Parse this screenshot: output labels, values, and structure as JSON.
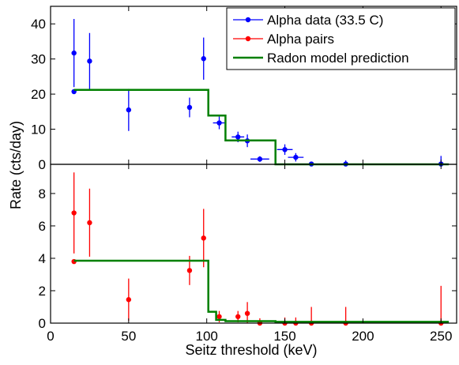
{
  "chart_data": {
    "type": "scatter",
    "xlabel": "Seitz threshold (keV)",
    "ylabel": "Rate (cts/day)",
    "xlim": [
      0,
      260
    ],
    "x_ticks": [
      0,
      50,
      100,
      150,
      200,
      250
    ],
    "grid": false,
    "legend_position": "top-right",
    "panels": [
      {
        "id": "top",
        "ylim": [
          0,
          45
        ],
        "y_ticks": [
          0,
          10,
          20,
          30,
          40
        ],
        "series": [
          {
            "name": "Alpha data (33.5 C)",
            "kind": "errorbar",
            "color": "#0000ff",
            "points": [
              {
                "x": 15,
                "y": 31.7,
                "err": 9.7
              },
              {
                "x": 15,
                "y": 20.7,
                "err": 0.5
              },
              {
                "x": 25,
                "y": 29.4,
                "err": 8.0
              },
              {
                "x": 50,
                "y": 15.5,
                "err": 6.0
              },
              {
                "x": 89,
                "y": 16.2,
                "err": 2.8
              },
              {
                "x": 98,
                "y": 30.1,
                "err": 6.0
              },
              {
                "x": 108,
                "y": 11.8,
                "err": 1.8,
                "xerr": 4
              },
              {
                "x": 120,
                "y": 7.8,
                "err": 1.5,
                "xerr": 4
              },
              {
                "x": 126,
                "y": 6.7,
                "err": 1.8,
                "xerr": 5
              },
              {
                "x": 134,
                "y": 1.5,
                "err": 0.8,
                "xerr": 6
              },
              {
                "x": 150,
                "y": 4.2,
                "err": 1.5,
                "xerr": 5
              },
              {
                "x": 157,
                "y": 2.0,
                "err": 1.2,
                "xerr": 5
              },
              {
                "x": 167,
                "y": 0.1,
                "err": 0.4
              },
              {
                "x": 189,
                "y": 0.1,
                "err": 1.0
              },
              {
                "x": 250,
                "y": 0.1,
                "err": 2.3
              }
            ]
          },
          {
            "name": "Radon model prediction",
            "kind": "step",
            "color": "#008000",
            "x": [
              15,
              101,
              101,
              112,
              112,
              144,
              144,
              255
            ],
            "y": [
              21.2,
              21.2,
              13.9,
              13.9,
              6.8,
              6.8,
              0,
              0
            ]
          }
        ]
      },
      {
        "id": "bottom",
        "ylim": [
          0,
          9.8
        ],
        "y_ticks": [
          0,
          2,
          4,
          6,
          8
        ],
        "series": [
          {
            "name": "Alpha pairs",
            "kind": "errorbar",
            "color": "#ff0000",
            "points": [
              {
                "x": 15,
                "y": 6.8,
                "err": 2.5
              },
              {
                "x": 15,
                "y": 3.8,
                "err": 0.1
              },
              {
                "x": 25,
                "y": 6.2,
                "err": 2.1
              },
              {
                "x": 50,
                "y": 1.45,
                "err": 1.3
              },
              {
                "x": 89,
                "y": 3.25,
                "err": 0.9
              },
              {
                "x": 98,
                "y": 5.25,
                "err": 1.8
              },
              {
                "x": 108,
                "y": 0.4,
                "err": 0.35
              },
              {
                "x": 120,
                "y": 0.4,
                "err": 0.35
              },
              {
                "x": 126,
                "y": 0.6,
                "err": 0.7
              },
              {
                "x": 134,
                "y": 0.0,
                "err": 0.3
              },
              {
                "x": 150,
                "y": 0.0,
                "err": 0.35
              },
              {
                "x": 157,
                "y": 0.0,
                "err": 0.35
              },
              {
                "x": 167,
                "y": 0.0,
                "err": 1.0
              },
              {
                "x": 189,
                "y": 0.0,
                "err": 1.0
              },
              {
                "x": 250,
                "y": 0.0,
                "err": 2.3
              }
            ]
          },
          {
            "name": "Radon model prediction",
            "kind": "step",
            "color": "#008000",
            "x": [
              15,
              101,
              101,
              106,
              106,
              112,
              112,
              144,
              144,
              255
            ],
            "y": [
              3.85,
              3.85,
              0.7,
              0.7,
              0.2,
              0.2,
              0.12,
              0.12,
              0.08,
              0.08
            ]
          }
        ]
      }
    ],
    "legend": [
      {
        "label": "Alpha data (33.5 C)",
        "color": "#0000ff",
        "kind": "errorbar"
      },
      {
        "label": "Alpha pairs",
        "color": "#ff0000",
        "kind": "errorbar"
      },
      {
        "label": "Radon model prediction",
        "color": "#008000",
        "kind": "step"
      }
    ]
  }
}
